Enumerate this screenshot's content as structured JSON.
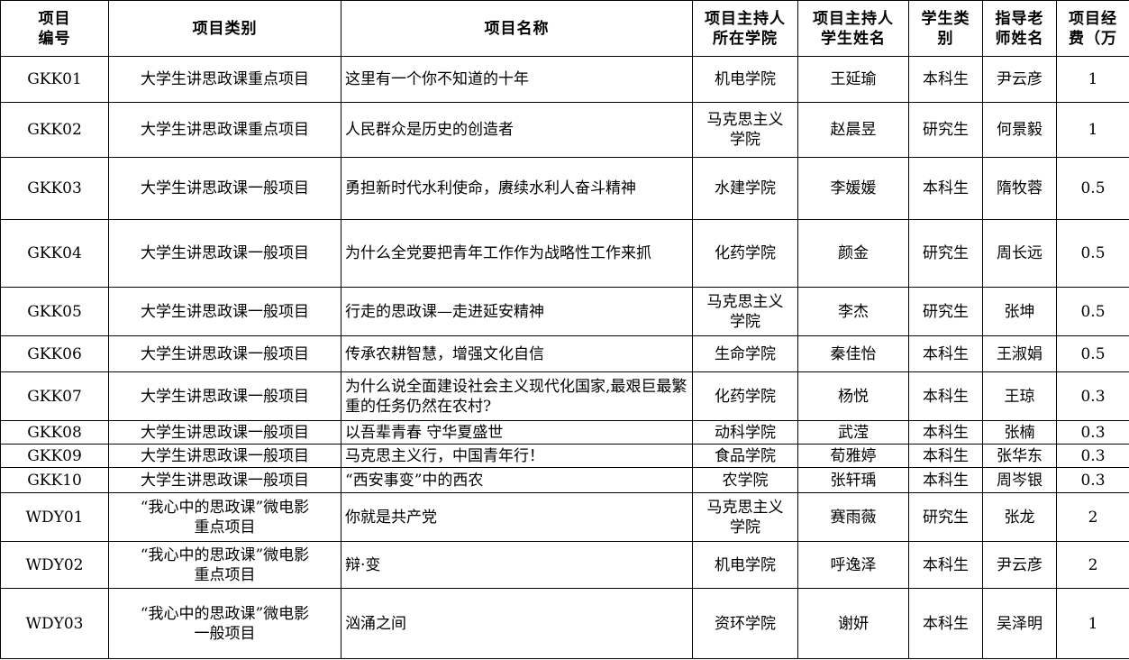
{
  "table": {
    "header": [
      "项目\n编号",
      "项目类别",
      "项目名称",
      "项目主持人\n所在学院",
      "项目主持人\n学生姓名",
      "学生类\n别",
      "指导老\n师姓名",
      "项目经\n费（万"
    ],
    "rows": [
      [
        "GKK01",
        "大学生讲思政课重点项目",
        "这里有一个你不知道的十年",
        "机电学院",
        "王延瑜",
        "本科生",
        "尹云彦",
        1
      ],
      [
        "GKK02",
        "大学生讲思政课重点项目",
        "人民群众是历史的创造者",
        "马克思主义\n学院",
        "赵晨昱",
        "研究生",
        "何景毅",
        1
      ],
      [
        "GKK03",
        "大学生讲思政课一般项目",
        "勇担新时代水利使命，赓续水利人奋斗精神",
        "水建学院",
        "李媛媛",
        "本科生",
        "隋牧蓉",
        0.5
      ],
      [
        "GKK04",
        "大学生讲思政课一般项目",
        "为什么全党要把青年工作作为战略性工作来抓",
        "化药学院",
        "颜金",
        "研究生",
        "周长远",
        0.5
      ],
      [
        "GKK05",
        "大学生讲思政课一般项目",
        "行走的思政课—走进延安精神",
        "马克思主义\n学院",
        "李杰",
        "研究生",
        "张坤",
        0.5
      ],
      [
        "GKK06",
        "大学生讲思政课一般项目",
        "传承农耕智慧，增强文化自信",
        "生命学院",
        "秦佳怡",
        "本科生",
        "王淑娟",
        0.5
      ],
      [
        "GKK07",
        "大学生讲思政课一般项目",
        "为什么说全面建设社会主义现代化国家,最艰巨最繁重的任务仍然在农村?",
        "化药学院",
        "杨悦",
        "本科生",
        "王琼",
        0.3
      ],
      [
        "GKK08",
        "大学生讲思政课一般项目",
        "以吾辈青春 守华夏盛世",
        "动科学院",
        "武滢",
        "本科生",
        "张楠",
        0.3
      ],
      [
        "GKK09",
        "大学生讲思政课一般项目",
        "马克思主义行，中国青年行！",
        "食品学院",
        "荀雅婷",
        "本科生",
        "张华东",
        0.3
      ],
      [
        "GKK10",
        "大学生讲思政课一般项目",
        "“西安事变”中的西农",
        "农学院",
        "张轩瑀",
        "本科生",
        "周岑银",
        0.3
      ],
      [
        "WDY01",
        "“我心中的思政课”微电影\n重点项目",
        "你就是共产党",
        "马克思主义\n学院",
        "赛雨薇",
        "研究生",
        "张龙",
        2
      ],
      [
        "WDY02",
        "“我心中的思政课”微电影\n重点项目",
        "辩·变",
        "机电学院",
        "呼逸泽",
        "本科生",
        "尹云彦",
        2
      ],
      [
        "WDY03",
        "“我心中的思政课”微电影\n一般项目",
        "汹涌之间",
        "资环学院",
        "谢妍",
        "本科生",
        "吴泽明",
        1
      ]
    ]
  }
}
